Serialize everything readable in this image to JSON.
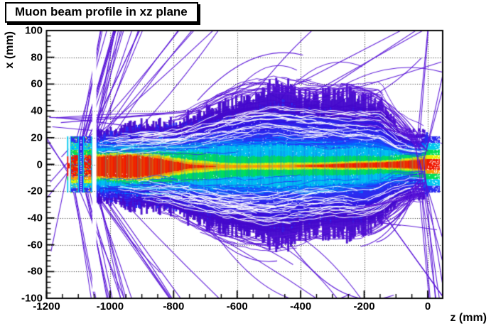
{
  "chart_data": {
    "type": "heatmap",
    "title": "Muon beam profile in xz plane",
    "xlabel": "z (mm)",
    "ylabel": "x (mm)",
    "xlim": [
      -1200,
      47
    ],
    "ylim": [
      -100,
      100
    ],
    "grid": "dotted-both-axes",
    "legend": "none",
    "seed": 1337,
    "x_ticks": [
      {
        "v": -1200,
        "label": "-1200"
      },
      {
        "v": -1000,
        "label": "-1000"
      },
      {
        "v": -800,
        "label": "-800"
      },
      {
        "v": -600,
        "label": "-600"
      },
      {
        "v": -400,
        "label": "-400"
      },
      {
        "v": -200,
        "label": "-200"
      },
      {
        "v": 0,
        "label": "0"
      }
    ],
    "x_minor_step": 50,
    "y_ticks": [
      {
        "v": 100,
        "label": "100"
      },
      {
        "v": 80,
        "label": "80"
      },
      {
        "v": 60,
        "label": "60"
      },
      {
        "v": 40,
        "label": "40"
      },
      {
        "v": 20,
        "label": "20"
      },
      {
        "v": 0,
        "label": "0"
      },
      {
        "v": -20,
        "label": "-20"
      },
      {
        "v": -40,
        "label": "-40"
      },
      {
        "v": -60,
        "label": "-60"
      },
      {
        "v": -80,
        "label": "-80"
      },
      {
        "v": -100,
        "label": "-100"
      }
    ],
    "y_minor_step": 4,
    "palette": {
      "track": "#5a14d8",
      "indigo": "#4408cc",
      "blue": "#2b2bf0",
      "ltblue": "#0070ff",
      "cyan": "#00c8f0",
      "green": "#00e055",
      "yellow": "#e8f000",
      "orange": "#ff9600",
      "red": "#f01800",
      "grid": "#000000",
      "frame": "#000000"
    },
    "beam": {
      "z_start": -1043,
      "z_end": -5,
      "center": {
        "z": [
          -1043,
          -600,
          -300,
          -60,
          40
        ],
        "v": [
          -1.5,
          -1.5,
          -1,
          0,
          0
        ]
      },
      "envelope": {
        "z": [
          -1043,
          -950,
          -850,
          -750,
          -650,
          -550,
          -450,
          -350,
          -250,
          -150,
          -100,
          -60,
          -20,
          -5
        ],
        "indigo": [
          26,
          28,
          31,
          36,
          41,
          44,
          45,
          44,
          44,
          40,
          30,
          25,
          23,
          22
        ],
        "blue": [
          23,
          25,
          27,
          30,
          33,
          35,
          36,
          35,
          34,
          32,
          26,
          22,
          21,
          21
        ],
        "ltblue": [
          19,
          20,
          21,
          22,
          23,
          23,
          22,
          21,
          20,
          19,
          17,
          16,
          16,
          16
        ],
        "cyan": [
          15,
          16,
          17,
          17,
          17,
          16,
          15,
          14,
          13,
          13,
          12,
          12,
          13,
          14
        ],
        "green": [
          11,
          12,
          12,
          11,
          9,
          8,
          7,
          7,
          7,
          7,
          8,
          9,
          10,
          11
        ],
        "yellow": [
          9.5,
          10,
          9,
          5,
          3,
          2.5,
          2.5,
          2.5,
          3,
          3.5,
          4,
          5,
          6,
          7
        ],
        "orange": [
          8.5,
          9,
          7.5,
          3,
          1.5,
          1,
          1,
          1.5,
          2,
          2.5,
          3,
          3.5,
          4.5,
          5
        ],
        "red": [
          8,
          8,
          6,
          1.5,
          0,
          0,
          0,
          0.8,
          1.5,
          2,
          2.5,
          3,
          3.5,
          4
        ]
      },
      "top_extra": {
        "z": [
          -780,
          -600,
          -500,
          -400,
          -300,
          -200,
          -150,
          -95
        ],
        "v": [
          0,
          10,
          13,
          9,
          8,
          9,
          10,
          0
        ]
      },
      "bot_extra": {
        "z": [
          -820,
          -650,
          -500,
          -400,
          -300,
          -200,
          -150,
          -115
        ],
        "v": [
          0,
          9,
          11,
          8,
          5,
          8,
          4,
          0
        ]
      }
    },
    "elements": {
      "window_line": {
        "z": -1133,
        "w": 4,
        "segments": [
          [
            21,
            6,
            "cyan"
          ],
          [
            6,
            -9,
            "red"
          ],
          [
            -9,
            -12,
            "green"
          ],
          [
            -12,
            -21,
            "cyan"
          ]
        ]
      },
      "slab1": {
        "z0": -1126,
        "z1": -1098
      },
      "channel": {
        "z0": -1098,
        "z1": -1085
      },
      "slab2": {
        "z0": -1085,
        "z1": -1056
      },
      "slab_halfheight": 21,
      "slab_bands": [
        [
          21,
          16,
          "blue"
        ],
        [
          16,
          11,
          "cyan"
        ],
        [
          11,
          7,
          "green"
        ],
        [
          7,
          -9,
          "red"
        ],
        [
          -9,
          -11.5,
          "orange"
        ],
        [
          -11.5,
          -14,
          "yellow"
        ],
        [
          -14,
          -17.5,
          "cyan"
        ],
        [
          -17.5,
          -21,
          "blue"
        ]
      ],
      "white_gaps": [
        {
          "z": [
            -1131,
            -1126
          ],
          "x": [
            -26,
            26
          ]
        },
        {
          "z": [
            -1056,
            -1043
          ],
          "x": [
            -95,
            95
          ]
        }
      ],
      "red_bridge": {
        "z": [
          -1132,
          -1127
        ],
        "x": [
          1,
          -3
        ]
      },
      "focus_window": {
        "z0": -4,
        "z1": 38,
        "bands": [
          [
            21,
            16,
            "blue"
          ],
          [
            16,
            11,
            "cyan"
          ],
          [
            11,
            7,
            "green"
          ],
          [
            7,
            4,
            "yellow"
          ],
          [
            4,
            -4,
            "red"
          ],
          [
            -4,
            -7,
            "orange"
          ],
          [
            -7,
            -11,
            "green"
          ],
          [
            -11,
            -16,
            "cyan"
          ],
          [
            -16,
            -21,
            "blue"
          ]
        ]
      }
    },
    "stray_tracks": {
      "color": "#5a14d8",
      "groups": [
        {
          "name": "left-fan-up",
          "n": 26,
          "z0": [
            -1135,
            -1040
          ],
          "x0": [
            -12,
            14
          ],
          "slope": [
            0.05,
            1.5
          ],
          "len": [
            200,
            1300
          ],
          "curve": 0.05
        },
        {
          "name": "left-fan-down",
          "n": 22,
          "z0": [
            -1135,
            -1040
          ],
          "x0": [
            -14,
            10
          ],
          "slope": [
            -1.5,
            -0.05
          ],
          "len": [
            200,
            1300
          ],
          "curve": 0.05
        },
        {
          "name": "left-backscatter",
          "n": 6,
          "z0": [
            -1134,
            -1128
          ],
          "x0": [
            -12,
            12
          ],
          "slope": [
            -1.2,
            1.2
          ],
          "len": [
            -80,
            -20
          ],
          "curve": 0
        },
        {
          "name": "left-horizontal",
          "n": 5,
          "z0": [
            -1199,
            -1150
          ],
          "x0": [
            25,
            45
          ],
          "slope": [
            -0.035,
            0.02
          ],
          "len": [
            250,
            650
          ],
          "curve": 0.02
        },
        {
          "name": "mid-top-strands",
          "n": 12,
          "z0": [
            -800,
            -350
          ],
          "x0": [
            36,
            50
          ],
          "slope": [
            0.02,
            0.22
          ],
          "len": [
            150,
            600
          ],
          "curve": 0.12
        },
        {
          "name": "mid-bottom-strands",
          "n": 8,
          "z0": [
            -850,
            -400
          ],
          "x0": [
            -50,
            -38
          ],
          "slope": [
            -0.2,
            -0.02
          ],
          "len": [
            150,
            500
          ],
          "curve": 0.12
        },
        {
          "name": "bottom-horizontal",
          "n": 4,
          "z0": [
            -700,
            -450
          ],
          "x0": [
            -58,
            -40
          ],
          "slope": [
            -0.06,
            0.06
          ],
          "len": [
            250,
            550
          ],
          "curve": 0.05
        },
        {
          "name": "top-right-cross",
          "n": 5,
          "z0": [
            -520,
            -380
          ],
          "x0": [
            45,
            55
          ],
          "slope": [
            -0.12,
            0.16
          ],
          "len": [
            380,
            560
          ],
          "curve": 0
        },
        {
          "name": "bottom-right-long",
          "n": 2,
          "z0": [
            -160,
            -120
          ],
          "x0": [
            -34,
            -28
          ],
          "slope": [
            -0.45,
            -0.3
          ],
          "len": [
            200,
            260
          ],
          "curve": 0
        }
      ],
      "converge_top": {
        "n": 15,
        "zA": [
          -280,
          -150
        ],
        "xA": [
          30,
          62
        ],
        "zB": [
          -75,
          -25
        ],
        "xB": [
          16,
          25
        ]
      },
      "converge_bottom": {
        "n": 15,
        "zA": [
          -280,
          -150
        ],
        "xA": [
          -62,
          -30
        ],
        "zB": [
          -75,
          -25
        ],
        "xB": [
          -25,
          -16
        ]
      },
      "diverge_after_focus": {
        "n": 12,
        "z0": [
          -60,
          5
        ],
        "x0": [
          -20,
          20
        ],
        "slope_abs": [
          0.5,
          3.0
        ],
        "len": [
          60,
          220
        ]
      }
    },
    "texture": {
      "streaks_dark": 520,
      "streaks_white": 160,
      "streaks_cyan": 70,
      "hair_top": 22,
      "hair_bottom": 14,
      "white_speckle": 500
    }
  }
}
